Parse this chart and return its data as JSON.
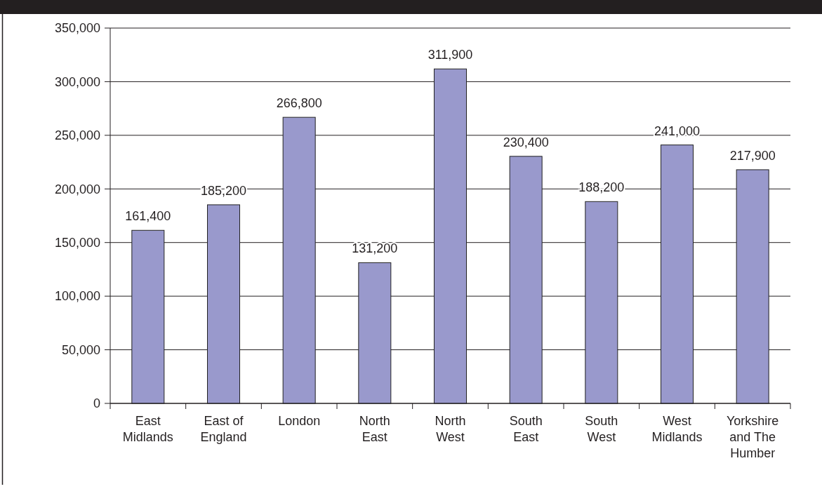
{
  "chart_data": {
    "type": "bar",
    "categories": [
      "East Midlands",
      "East of England",
      "London",
      "North East",
      "North West",
      "South East",
      "South West",
      "West Midlands",
      "Yorkshire and The Humber"
    ],
    "values": [
      161400,
      185200,
      266800,
      131200,
      311900,
      230400,
      188200,
      241000,
      217900
    ],
    "value_labels": [
      "161,400",
      "185,200",
      "266,800",
      "131,200",
      "311,900",
      "230,400",
      "188,200",
      "241,000",
      "217,900"
    ],
    "color": "#9999cc",
    "ylim": [
      0,
      350000
    ],
    "yticks": [
      0,
      {
        "value": 50000,
        "label": "50,000"
      },
      {
        "value": 100000,
        "label": "100,000"
      },
      {
        "value": 150000,
        "label": "150,000"
      },
      {
        "value": 200000,
        "label": "200,000"
      },
      {
        "value": 250000,
        "label": "250,000"
      },
      {
        "value": 300000,
        "label": "300,000"
      },
      {
        "value": 350000,
        "label": "350,000"
      }
    ],
    "grid": "y"
  }
}
